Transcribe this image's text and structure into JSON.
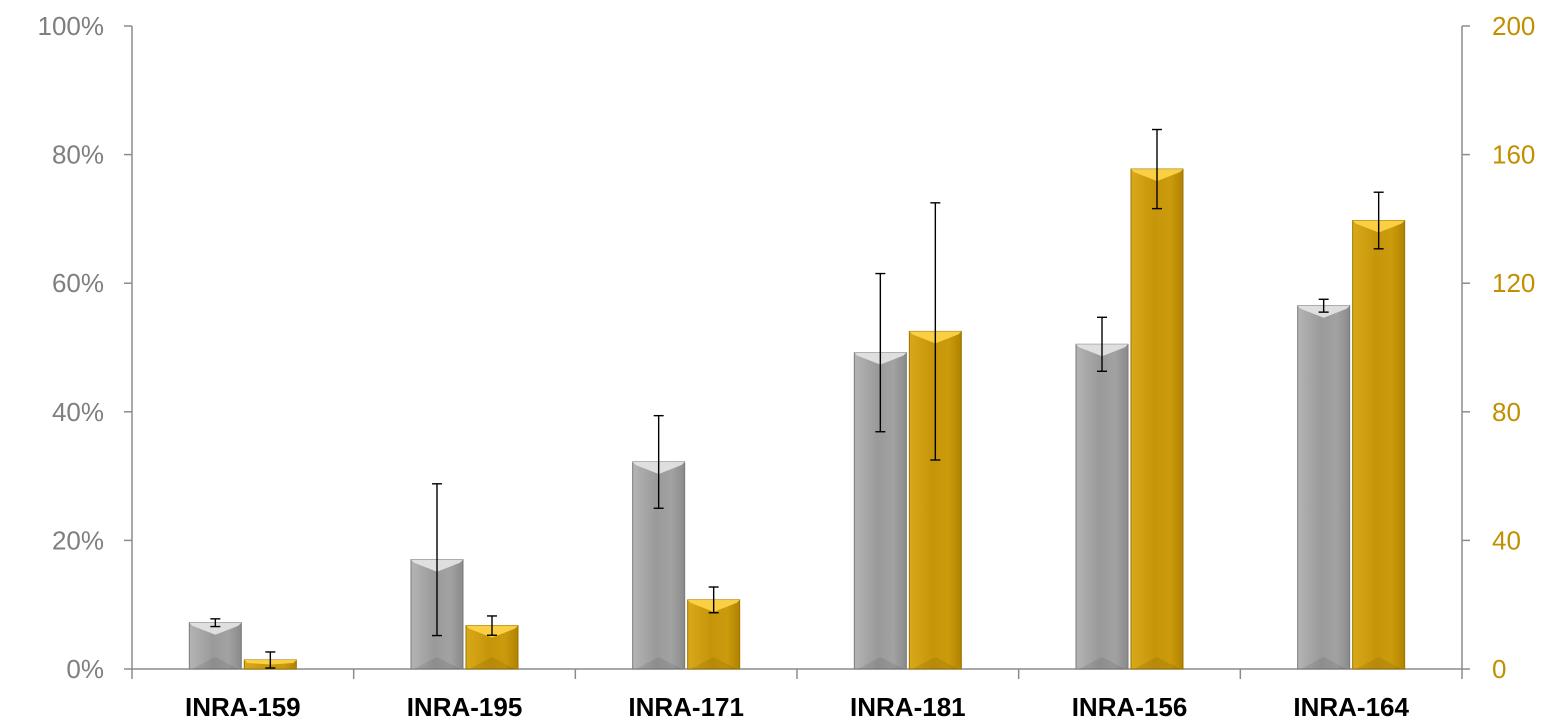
{
  "chart_data": {
    "type": "bar",
    "title": "",
    "xlabel": "",
    "ylabel_left": "",
    "ylabel_right": "",
    "categories": [
      "INRA-159",
      "INRA-195",
      "INRA-171",
      "INRA-181",
      "INRA-156",
      "INRA-164"
    ],
    "y_left": {
      "min": 0,
      "max": 100,
      "ticks": [
        "0%",
        "20%",
        "40%",
        "60%",
        "80%",
        "100%"
      ],
      "values": [
        0,
        20,
        40,
        60,
        80,
        100
      ]
    },
    "y_right": {
      "min": 0,
      "max": 200,
      "ticks": [
        "0",
        "40",
        "80",
        "120",
        "160",
        "200"
      ],
      "values": [
        0,
        40,
        80,
        120,
        160,
        200
      ]
    },
    "grid": false,
    "legend": "none",
    "series": [
      {
        "axis": "left",
        "color": "#a6a6a6",
        "values": [
          7.2,
          17.0,
          32.2,
          49.2,
          50.5,
          56.5
        ],
        "error": [
          0.6,
          11.8,
          7.2,
          12.3,
          4.2,
          1.0
        ]
      },
      {
        "axis": "right",
        "color": "#d4a20a",
        "values": [
          2.8,
          13.5,
          21.5,
          105.0,
          155.5,
          139.5
        ],
        "error": [
          2.5,
          3.0,
          4.0,
          40.0,
          12.3,
          8.8
        ]
      }
    ]
  }
}
